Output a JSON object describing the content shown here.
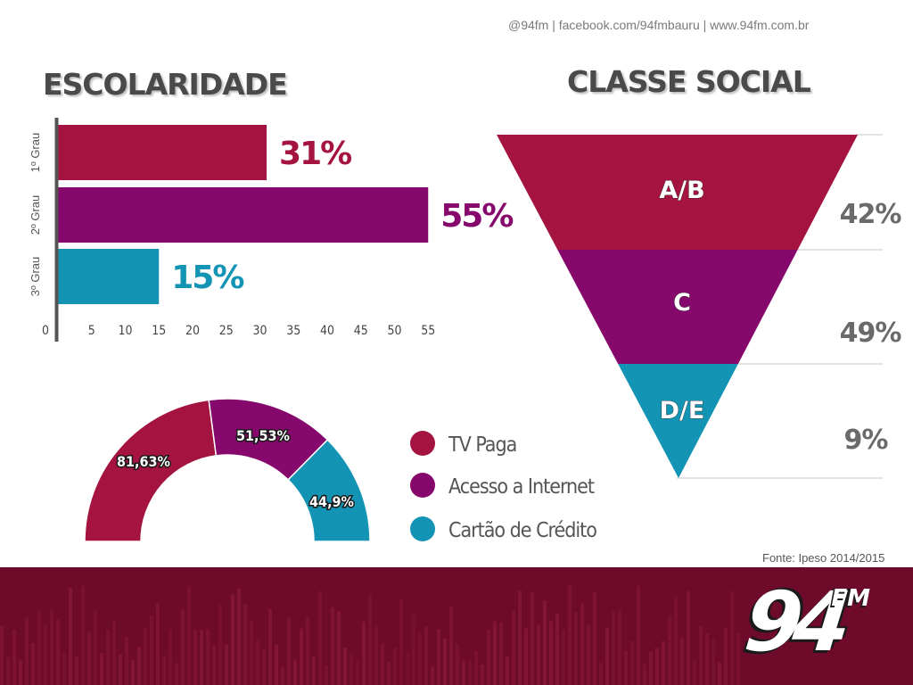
{
  "header": {
    "social_line": "@94fm | facebook.com/94fmbauru | www.94fm.com.br"
  },
  "colors": {
    "crimson": "#a51340",
    "purple": "#86086d",
    "teal": "#1394b4",
    "title_gray": "#4a4a4a",
    "footer": "#6e0b2a"
  },
  "source_note": "Fonte: Ipeso 2014/2015",
  "logo": {
    "number": "94",
    "suffix": "FM"
  },
  "chart_data": [
    {
      "type": "bar",
      "orientation": "horizontal",
      "title": "ESCOLARIDADE",
      "categories": [
        "1º Grau",
        "2º Grau",
        "3º Grau"
      ],
      "values": [
        31,
        55,
        15
      ],
      "value_labels": [
        "31%",
        "55%",
        "15%"
      ],
      "colors": [
        "#a51340",
        "#86086d",
        "#1394b4"
      ],
      "xlim": [
        0,
        57
      ],
      "xticks": [
        0,
        5,
        10,
        15,
        20,
        25,
        30,
        35,
        40,
        45,
        50,
        55
      ]
    },
    {
      "type": "funnel",
      "title": "CLASSE SOCIAL",
      "categories": [
        "A/B",
        "C",
        "D/E"
      ],
      "values": [
        42,
        49,
        9
      ],
      "value_labels": [
        "42%",
        "49%",
        "9%"
      ],
      "colors": [
        "#a51340",
        "#86086d",
        "#1394b4"
      ]
    },
    {
      "type": "pie",
      "variant": "half-donut",
      "categories": [
        "TV Paga",
        "Acesso a Internet",
        "Cartão de Crédito"
      ],
      "values": [
        81.63,
        51.53,
        44.9
      ],
      "value_labels": [
        "81,63%",
        "51,53%",
        "44,9%"
      ],
      "colors": [
        "#a51340",
        "#86086d",
        "#1394b4"
      ]
    }
  ]
}
